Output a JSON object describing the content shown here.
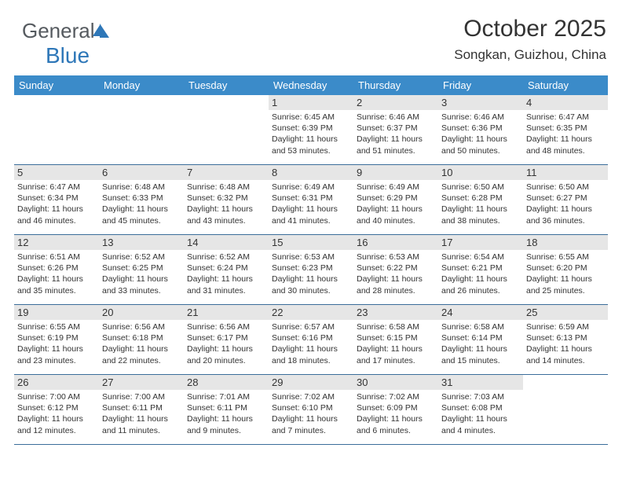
{
  "logo": {
    "part1": "General",
    "part2": "Blue"
  },
  "header": {
    "title": "October 2025",
    "location": "Songkan, Guizhou, China"
  },
  "colors": {
    "header_bg": "#3b8bc9",
    "header_text": "#ffffff",
    "row_divider": "#3b6d9a",
    "daynum_bg": "#e6e6e6",
    "text": "#333333",
    "logo_gray": "#555a5f",
    "logo_blue": "#2e77b8"
  },
  "weekdays": [
    "Sunday",
    "Monday",
    "Tuesday",
    "Wednesday",
    "Thursday",
    "Friday",
    "Saturday"
  ],
  "weeks": [
    [
      {
        "n": "",
        "d": ""
      },
      {
        "n": "",
        "d": ""
      },
      {
        "n": "",
        "d": ""
      },
      {
        "n": "1",
        "d": "Sunrise: 6:45 AM\nSunset: 6:39 PM\nDaylight: 11 hours and 53 minutes."
      },
      {
        "n": "2",
        "d": "Sunrise: 6:46 AM\nSunset: 6:37 PM\nDaylight: 11 hours and 51 minutes."
      },
      {
        "n": "3",
        "d": "Sunrise: 6:46 AM\nSunset: 6:36 PM\nDaylight: 11 hours and 50 minutes."
      },
      {
        "n": "4",
        "d": "Sunrise: 6:47 AM\nSunset: 6:35 PM\nDaylight: 11 hours and 48 minutes."
      }
    ],
    [
      {
        "n": "5",
        "d": "Sunrise: 6:47 AM\nSunset: 6:34 PM\nDaylight: 11 hours and 46 minutes."
      },
      {
        "n": "6",
        "d": "Sunrise: 6:48 AM\nSunset: 6:33 PM\nDaylight: 11 hours and 45 minutes."
      },
      {
        "n": "7",
        "d": "Sunrise: 6:48 AM\nSunset: 6:32 PM\nDaylight: 11 hours and 43 minutes."
      },
      {
        "n": "8",
        "d": "Sunrise: 6:49 AM\nSunset: 6:31 PM\nDaylight: 11 hours and 41 minutes."
      },
      {
        "n": "9",
        "d": "Sunrise: 6:49 AM\nSunset: 6:29 PM\nDaylight: 11 hours and 40 minutes."
      },
      {
        "n": "10",
        "d": "Sunrise: 6:50 AM\nSunset: 6:28 PM\nDaylight: 11 hours and 38 minutes."
      },
      {
        "n": "11",
        "d": "Sunrise: 6:50 AM\nSunset: 6:27 PM\nDaylight: 11 hours and 36 minutes."
      }
    ],
    [
      {
        "n": "12",
        "d": "Sunrise: 6:51 AM\nSunset: 6:26 PM\nDaylight: 11 hours and 35 minutes."
      },
      {
        "n": "13",
        "d": "Sunrise: 6:52 AM\nSunset: 6:25 PM\nDaylight: 11 hours and 33 minutes."
      },
      {
        "n": "14",
        "d": "Sunrise: 6:52 AM\nSunset: 6:24 PM\nDaylight: 11 hours and 31 minutes."
      },
      {
        "n": "15",
        "d": "Sunrise: 6:53 AM\nSunset: 6:23 PM\nDaylight: 11 hours and 30 minutes."
      },
      {
        "n": "16",
        "d": "Sunrise: 6:53 AM\nSunset: 6:22 PM\nDaylight: 11 hours and 28 minutes."
      },
      {
        "n": "17",
        "d": "Sunrise: 6:54 AM\nSunset: 6:21 PM\nDaylight: 11 hours and 26 minutes."
      },
      {
        "n": "18",
        "d": "Sunrise: 6:55 AM\nSunset: 6:20 PM\nDaylight: 11 hours and 25 minutes."
      }
    ],
    [
      {
        "n": "19",
        "d": "Sunrise: 6:55 AM\nSunset: 6:19 PM\nDaylight: 11 hours and 23 minutes."
      },
      {
        "n": "20",
        "d": "Sunrise: 6:56 AM\nSunset: 6:18 PM\nDaylight: 11 hours and 22 minutes."
      },
      {
        "n": "21",
        "d": "Sunrise: 6:56 AM\nSunset: 6:17 PM\nDaylight: 11 hours and 20 minutes."
      },
      {
        "n": "22",
        "d": "Sunrise: 6:57 AM\nSunset: 6:16 PM\nDaylight: 11 hours and 18 minutes."
      },
      {
        "n": "23",
        "d": "Sunrise: 6:58 AM\nSunset: 6:15 PM\nDaylight: 11 hours and 17 minutes."
      },
      {
        "n": "24",
        "d": "Sunrise: 6:58 AM\nSunset: 6:14 PM\nDaylight: 11 hours and 15 minutes."
      },
      {
        "n": "25",
        "d": "Sunrise: 6:59 AM\nSunset: 6:13 PM\nDaylight: 11 hours and 14 minutes."
      }
    ],
    [
      {
        "n": "26",
        "d": "Sunrise: 7:00 AM\nSunset: 6:12 PM\nDaylight: 11 hours and 12 minutes."
      },
      {
        "n": "27",
        "d": "Sunrise: 7:00 AM\nSunset: 6:11 PM\nDaylight: 11 hours and 11 minutes."
      },
      {
        "n": "28",
        "d": "Sunrise: 7:01 AM\nSunset: 6:11 PM\nDaylight: 11 hours and 9 minutes."
      },
      {
        "n": "29",
        "d": "Sunrise: 7:02 AM\nSunset: 6:10 PM\nDaylight: 11 hours and 7 minutes."
      },
      {
        "n": "30",
        "d": "Sunrise: 7:02 AM\nSunset: 6:09 PM\nDaylight: 11 hours and 6 minutes."
      },
      {
        "n": "31",
        "d": "Sunrise: 7:03 AM\nSunset: 6:08 PM\nDaylight: 11 hours and 4 minutes."
      },
      {
        "n": "",
        "d": ""
      }
    ]
  ]
}
